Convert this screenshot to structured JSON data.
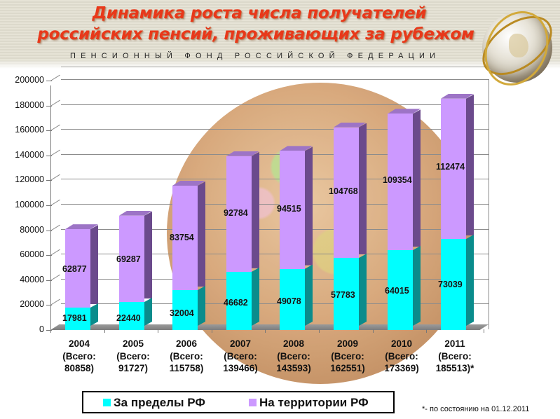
{
  "header": {
    "title_line1": "Динамика роста числа получателей",
    "title_line2": "российских пенсий, проживающих за рубежом",
    "subtitle": "ПЕНСИОННЫЙ ФОНД РОССИЙСКОЙ ФЕДЕРАЦИИ"
  },
  "colors": {
    "abroad": "#00ffff",
    "home": "#cc99ff",
    "title": "#e8381a"
  },
  "legend": {
    "abroad": "За пределы РФ",
    "home": "На территории РФ"
  },
  "footnote": "*- по состоянию на 01.12.2011",
  "y_ticks": [
    "200000",
    "180000",
    "160000",
    "140000",
    "120000",
    "100000",
    "80000",
    "60000",
    "40000",
    "20000",
    "0"
  ],
  "x_labels": [
    {
      "year": "2004",
      "total_line": "(Всего:",
      "total": "80858)"
    },
    {
      "year": "2005",
      "total_line": "(Всего:",
      "total": "91727)"
    },
    {
      "year": "2006",
      "total_line": "(Всего:",
      "total": "115758)"
    },
    {
      "year": "2007",
      "total_line": "(Всего:",
      "total": "139466)"
    },
    {
      "year": "2008",
      "total_line": "(Всего:",
      "total": "143593)"
    },
    {
      "year": "2009",
      "total_line": "(Всего:",
      "total": "162551)"
    },
    {
      "year": "2010",
      "total_line": "(Всего:",
      "total": "173369)"
    },
    {
      "year": "2011",
      "total_line": "(Всего:",
      "total": "185513)*"
    }
  ],
  "chart_data": {
    "type": "bar",
    "stacked": true,
    "title": "Динамика роста числа получателей российских пенсий, проживающих за рубежом",
    "subtitle": "ПЕНСИОННЫЙ ФОНД РОССИЙСКОЙ ФЕДЕРАЦИИ",
    "categories": [
      "2004",
      "2005",
      "2006",
      "2007",
      "2008",
      "2009",
      "2010",
      "2011"
    ],
    "category_labels": [
      "2004 (Всего: 80858)",
      "2005 (Всего: 91727)",
      "2006 (Всего: 115758)",
      "2007 (Всего: 139466)",
      "2008 (Всего: 143593)",
      "2009 (Всего: 162551)",
      "2010 (Всего: 173369)",
      "2011 (Всего: 185513)*"
    ],
    "series": [
      {
        "name": "За пределы РФ",
        "color": "#00ffff",
        "values": [
          17981,
          22440,
          32004,
          46682,
          49078,
          57783,
          64015,
          73039
        ]
      },
      {
        "name": "На территории РФ",
        "color": "#cc99ff",
        "values": [
          62877,
          69287,
          83754,
          92784,
          94515,
          104768,
          109354,
          112474
        ]
      }
    ],
    "totals": [
      80858,
      91727,
      115758,
      139466,
      143593,
      162551,
      173369,
      185513
    ],
    "xlabel": "",
    "ylabel": "",
    "ylim": [
      0,
      200000
    ],
    "y_tick_step": 20000,
    "grid": true,
    "legend_position": "bottom",
    "annotations": [
      "*- по состоянию на 01.12.2011"
    ],
    "style": "3d"
  }
}
